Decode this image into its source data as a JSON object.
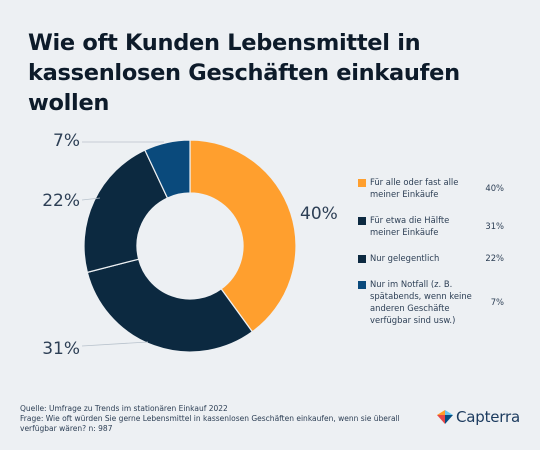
{
  "title": "Wie oft Kunden Lebensmittel in kassenlosen Geschäften einkaufen wollen",
  "chart_data": {
    "type": "pie",
    "series": [
      {
        "name": "Für alle oder fast alle meiner Einkäufe",
        "value": 40,
        "value_label": "40%",
        "color": "#ff9f2e"
      },
      {
        "name": "Für etwa die Hälfte meiner Einkäufe",
        "value": 31,
        "value_label": "31%",
        "color": "#0c2940"
      },
      {
        "name": "Nur gelegentlich",
        "value": 22,
        "value_label": "22%",
        "color": "#0c2940"
      },
      {
        "name": "Nur im Notfall (z. B. spätabends, wenn keine anderen Geschäfte verfügbar sind usw.)",
        "value": 7,
        "value_label": "7%",
        "color": "#0a4a7c"
      }
    ]
  },
  "footer": {
    "source": "Quelle: Umfrage zu Trends im stationären Einkauf 2022",
    "question": "Frage: Wie oft würden Sie gerne Lebensmittel in kassenlosen Geschäften einkaufen, wenn sie überall verfügbar wären? n: 987"
  },
  "brand": {
    "name": "Capterra",
    "icon": "capterra-logo-icon"
  }
}
